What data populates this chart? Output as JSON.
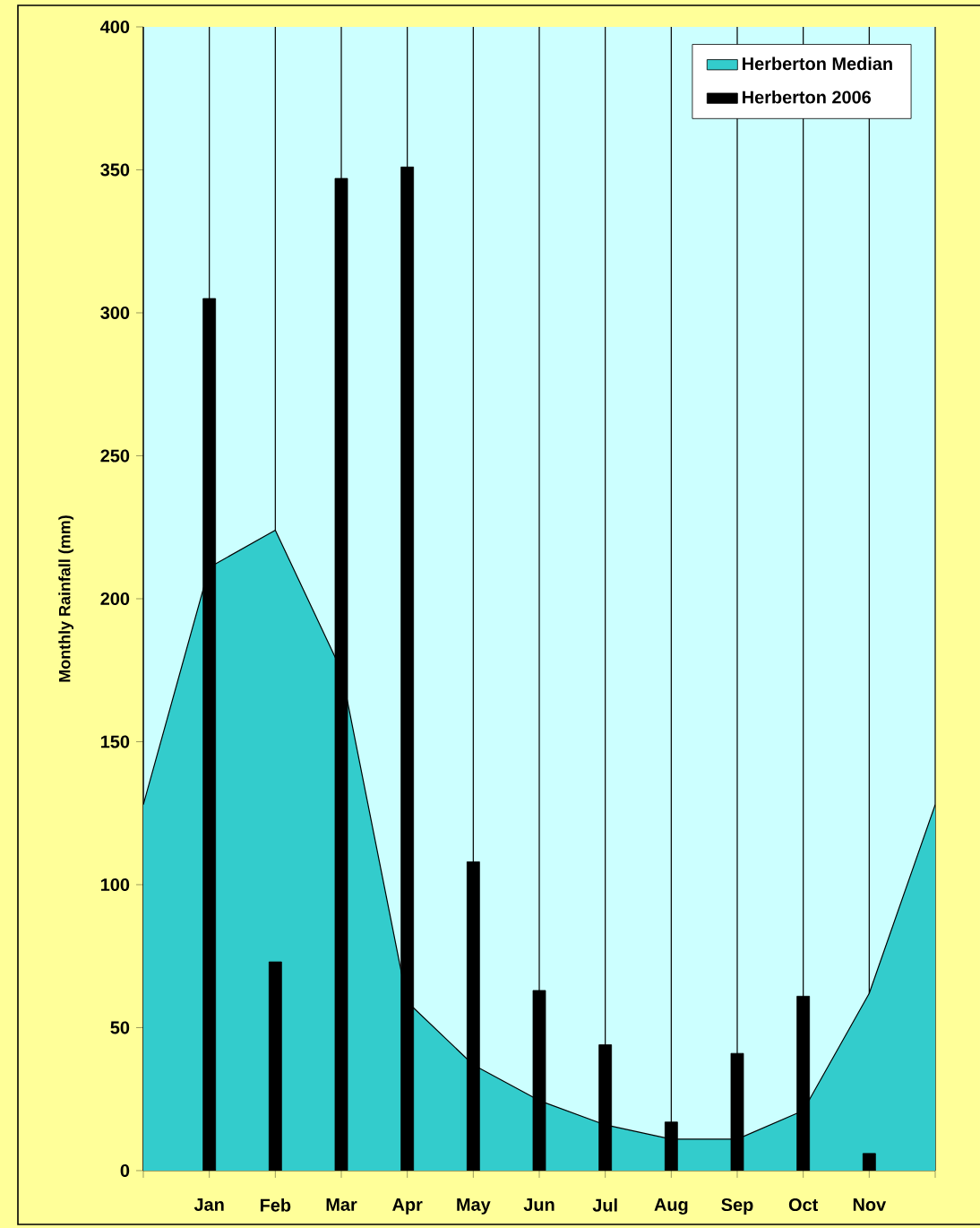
{
  "chart_data": {
    "type": "bar",
    "ylabel": "Monthly Rainfall (mm)",
    "categories": [
      null,
      "Jan",
      "Feb",
      "Mar",
      "Apr",
      "May",
      "Jun",
      "Jul",
      "Aug",
      "Sep",
      "Oct",
      "Nov",
      null
    ],
    "series": [
      {
        "name": "Herberton Median",
        "type": "area",
        "color": "#33cccc",
        "values": [
          128,
          211,
          224,
          175,
          59,
          37,
          24.5,
          16,
          11,
          11,
          21,
          62,
          128
        ]
      },
      {
        "name": "Herberton 2006",
        "type": "bar",
        "color": "#000000",
        "values": [
          null,
          305,
          73,
          347,
          351,
          108,
          63,
          44,
          17,
          41,
          61,
          6,
          null
        ]
      }
    ],
    "ylim": [
      0,
      400
    ],
    "yticks": [
      0,
      50,
      100,
      150,
      200,
      250,
      300,
      350,
      400
    ],
    "grid": "x",
    "legend": "top right"
  }
}
